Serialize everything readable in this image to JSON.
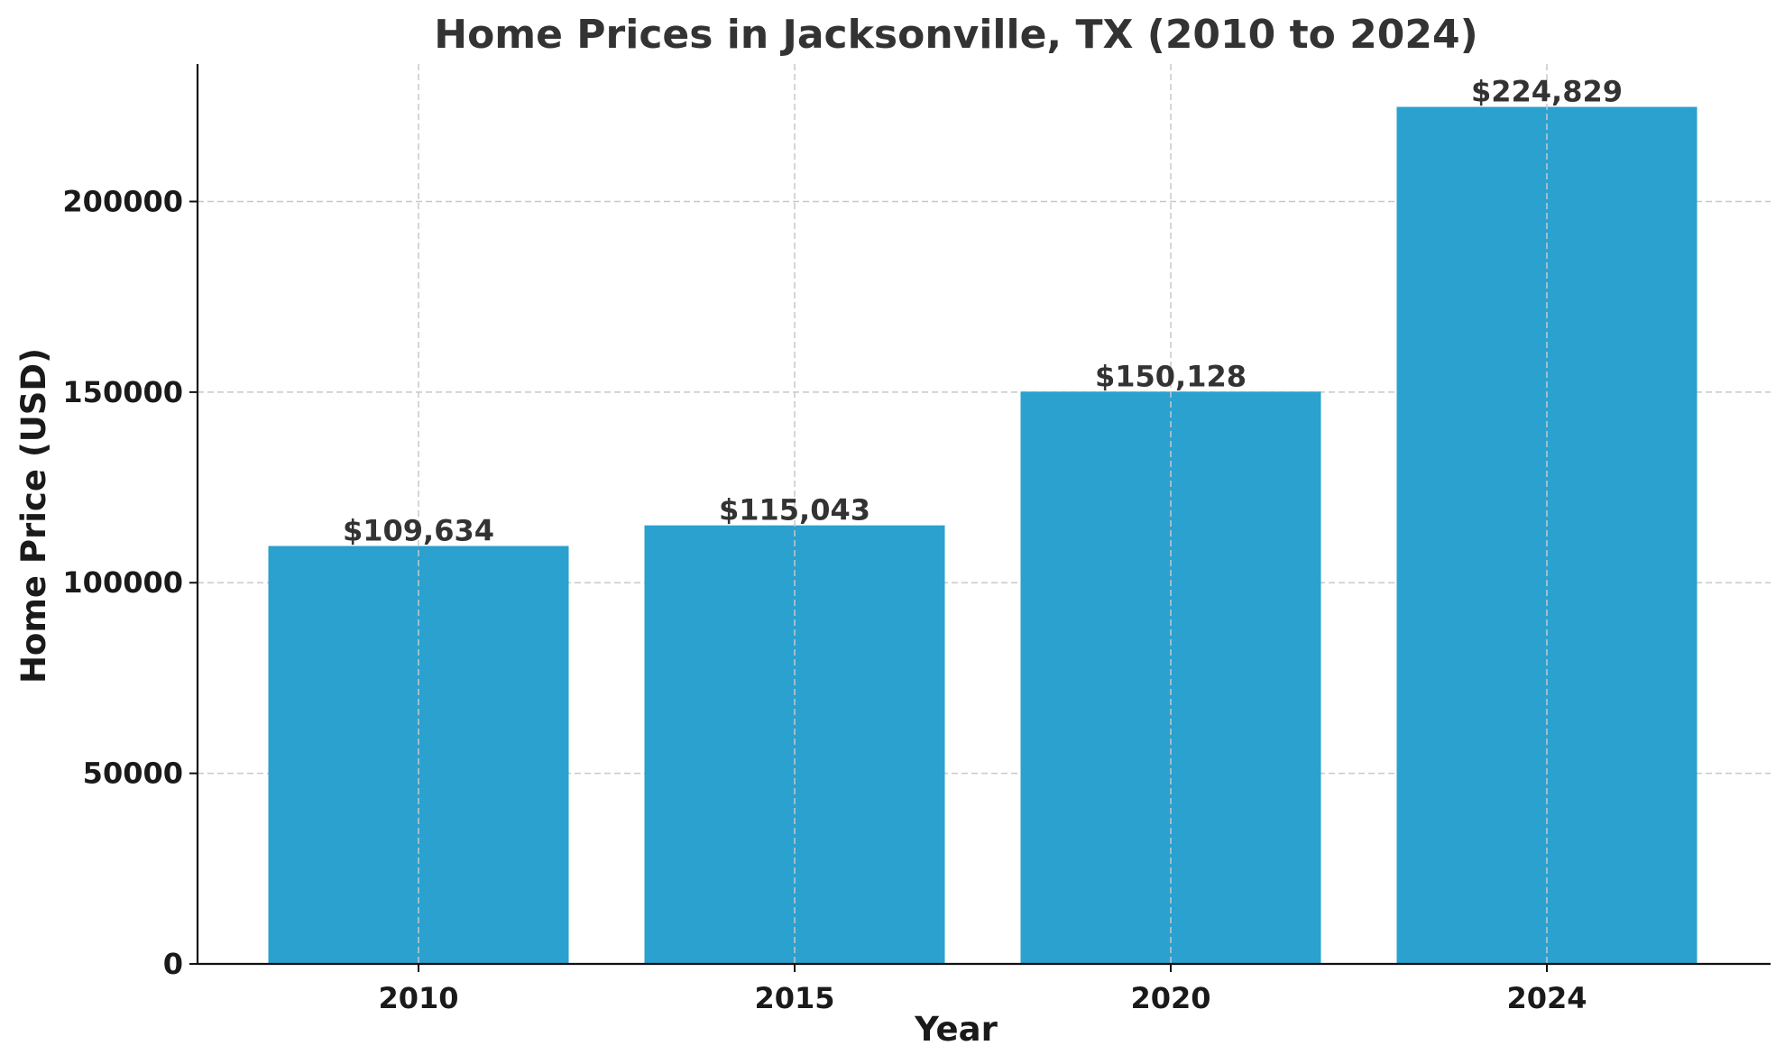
{
  "chart_data": {
    "type": "bar",
    "title": "Home Prices in Jacksonville, TX (2010 to 2024)",
    "xlabel": "Year",
    "ylabel": "Home Price (USD)",
    "categories": [
      "2010",
      "2015",
      "2020",
      "2024"
    ],
    "values": [
      109634,
      115043,
      150128,
      224829
    ],
    "data_labels": [
      "$109,634",
      "$115,043",
      "$150,128",
      "$224,829"
    ],
    "yticks": [
      0,
      50000,
      100000,
      150000,
      200000
    ],
    "ytick_labels": [
      "0",
      "50000",
      "100000",
      "150000",
      "200000"
    ],
    "ylim": [
      0,
      236070
    ],
    "grid": true,
    "bar_color": "#2aa1ce",
    "legend": null
  }
}
